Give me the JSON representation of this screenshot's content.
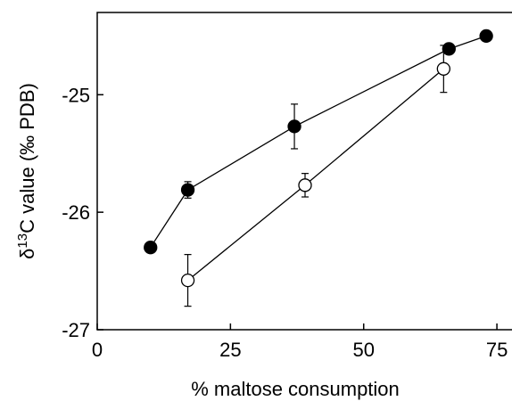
{
  "chart_data": {
    "type": "line",
    "xlabel": "% maltose consumption",
    "ylabel": {
      "delta": "δ",
      "superscript": "13",
      "rest": "C value (‰ PDB)"
    },
    "xlim": [
      0,
      78
    ],
    "ylim": [
      -27,
      -24.3
    ],
    "x_ticks": [
      0,
      25,
      50,
      75
    ],
    "y_ticks": [
      -25,
      -26,
      -27
    ],
    "grid": false,
    "legend": "none",
    "series": [
      {
        "marker": "filled-circle",
        "color": "#000000",
        "points": [
          {
            "x": 10,
            "y": -26.3,
            "err": 0
          },
          {
            "x": 17,
            "y": -25.81,
            "err": 0.07
          },
          {
            "x": 37,
            "y": -25.27,
            "err": 0.19
          },
          {
            "x": 66,
            "y": -24.61,
            "err": 0.04
          },
          {
            "x": 73,
            "y": -24.5,
            "err": 0
          }
        ]
      },
      {
        "marker": "open-circle",
        "color": "#000000",
        "points": [
          {
            "x": 17,
            "y": -26.58,
            "err": 0.22
          },
          {
            "x": 39,
            "y": -25.77,
            "err": 0.1
          },
          {
            "x": 65,
            "y": -24.78,
            "err": 0.2
          }
        ]
      }
    ]
  }
}
